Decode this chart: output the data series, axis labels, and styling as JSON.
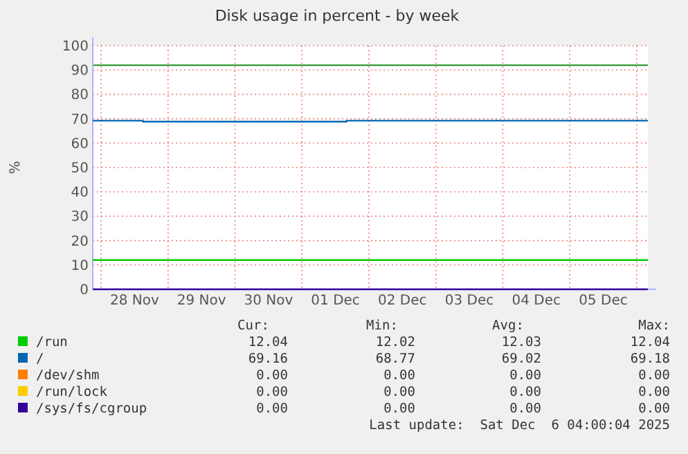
{
  "chart_data": {
    "type": "line",
    "title": "Disk usage in percent - by week",
    "ylabel": "%",
    "xlim": [
      "2025-11-27T21:00",
      "2025-12-06T04:00"
    ],
    "xticks": [
      {
        "value": "2025-11-28T00:00",
        "label": null
      },
      {
        "value": "2025-11-28T12:00",
        "label": "28 Nov"
      },
      {
        "value": "2025-11-29T00:00",
        "label": null
      },
      {
        "value": "2025-11-29T12:00",
        "label": "29 Nov"
      },
      {
        "value": "2025-11-30T00:00",
        "label": null
      },
      {
        "value": "2025-11-30T12:00",
        "label": "30 Nov"
      },
      {
        "value": "2025-12-01T00:00",
        "label": null
      },
      {
        "value": "2025-12-01T12:00",
        "label": "01 Dec"
      },
      {
        "value": "2025-12-02T00:00",
        "label": null
      },
      {
        "value": "2025-12-02T12:00",
        "label": "02 Dec"
      },
      {
        "value": "2025-12-03T00:00",
        "label": null
      },
      {
        "value": "2025-12-03T12:00",
        "label": "03 Dec"
      },
      {
        "value": "2025-12-04T00:00",
        "label": null
      },
      {
        "value": "2025-12-04T12:00",
        "label": "04 Dec"
      },
      {
        "value": "2025-12-05T00:00",
        "label": null
      },
      {
        "value": "2025-12-05T12:00",
        "label": "05 Dec"
      },
      {
        "value": "2025-12-06T00:00",
        "label": null
      }
    ],
    "ylim": [
      0,
      100
    ],
    "yticks": [
      0,
      10,
      20,
      30,
      40,
      50,
      60,
      70,
      80,
      90,
      100
    ],
    "grid": true,
    "legend": "bottom",
    "series": [
      {
        "name": "/run",
        "color": "#00cc00",
        "x": [
          "2025-11-27T21:00",
          "2025-12-06T04:00"
        ],
        "values": [
          12,
          12
        ]
      },
      {
        "name": "/",
        "color": "#0066b3",
        "type": "step",
        "x": [
          "2025-11-27T21:00",
          "2025-11-28T15:00",
          "2025-12-01T16:00",
          "2025-12-06T04:00"
        ],
        "values": [
          69.2,
          68.8,
          69.2,
          69.2
        ]
      },
      {
        "name": "/dev/shm",
        "color": "#ff8000"
      },
      {
        "name": "/run/lock",
        "color": "#ffcc00"
      },
      {
        "name": "/sys/fs/cgroup",
        "color": "#330099",
        "x": [
          "2025-11-27T21:00",
          "2025-12-06T04:00"
        ],
        "values": [
          0,
          0
        ]
      }
    ],
    "ref_lines": [
      {
        "axis": "y",
        "value": 92,
        "color": "#1e8c1e"
      }
    ],
    "annotations": [
      "Cur:",
      "Min:",
      "Avg:",
      "Max:",
      "12.04",
      "12.02",
      "12.03",
      "12.04",
      "69.16",
      "68.77",
      "69.02",
      "69.18",
      "0.00",
      "0.00",
      "0.00",
      "0.00",
      "0.00",
      "0.00",
      "0.00",
      "0.00",
      "0.00",
      "0.00",
      "0.00",
      "0.00",
      "Last update:  Sat Dec  6 04:00:04 2025"
    ]
  }
}
